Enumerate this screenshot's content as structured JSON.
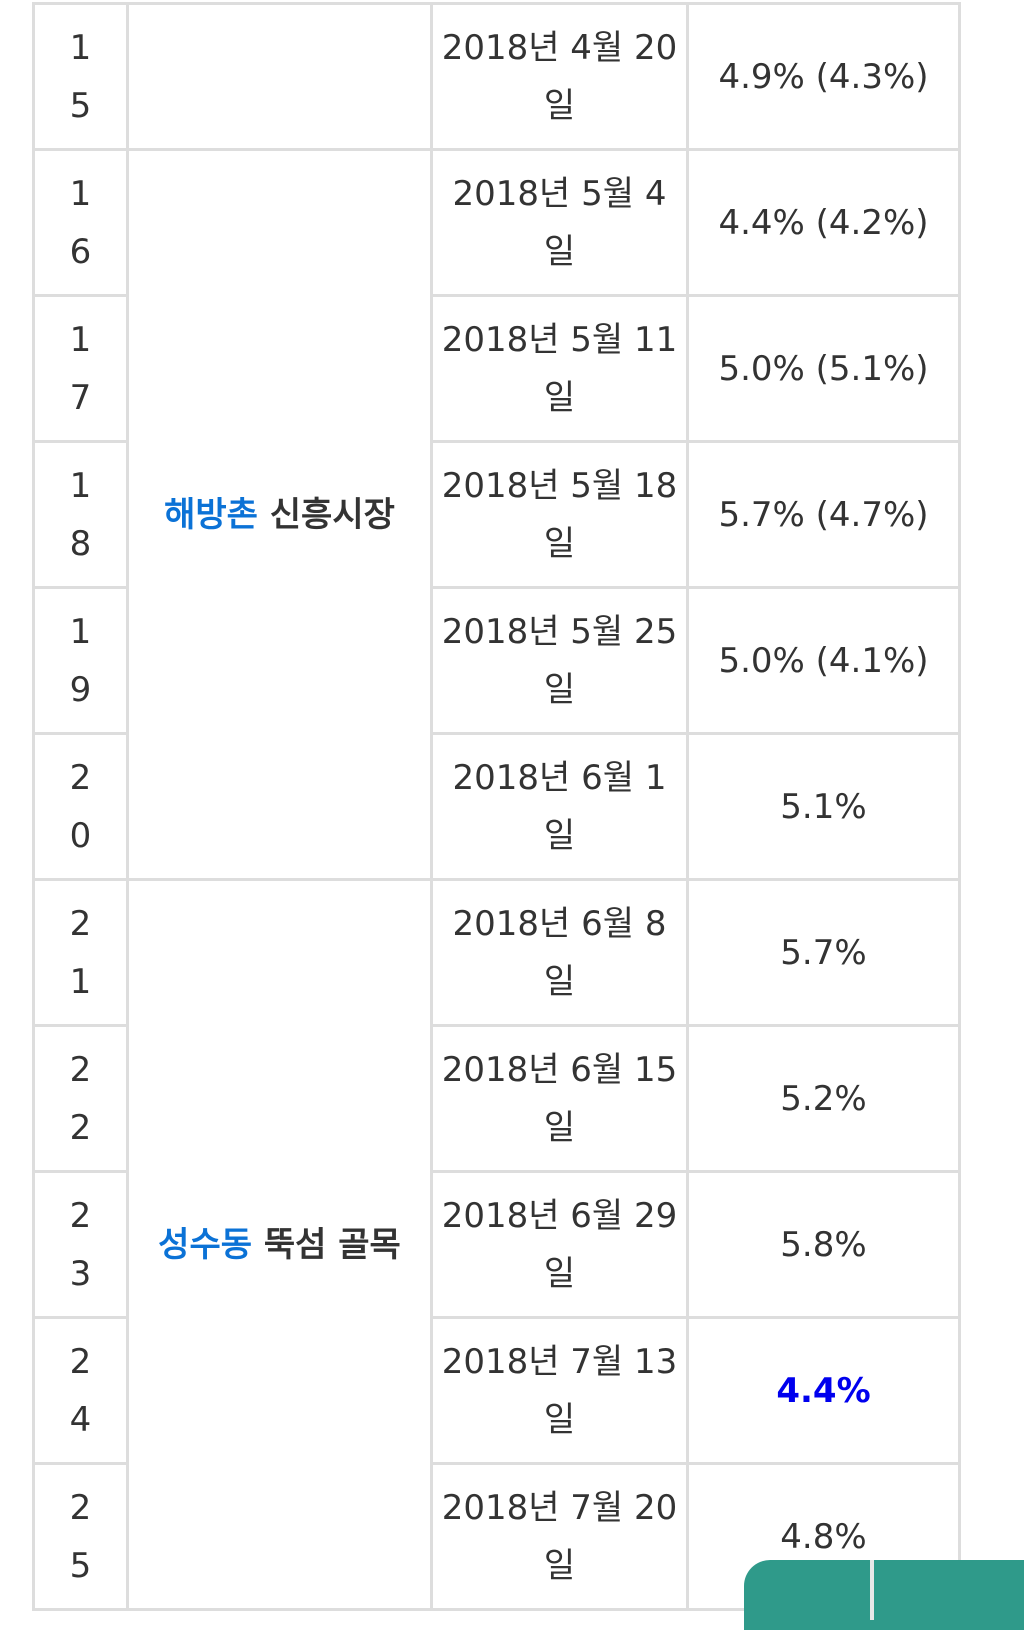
{
  "table": {
    "rows": [
      {
        "no": "15",
        "date": "2018년 4월 20일",
        "rating": "4.9% (4.3%)"
      },
      {
        "no": "16",
        "date": "2018년 5월 4일",
        "rating": "4.4% (4.2%)"
      },
      {
        "no": "17",
        "date": "2018년 5월 11일",
        "rating": "5.0% (5.1%)"
      },
      {
        "no": "18",
        "date": "2018년 5월 18일",
        "rating": "5.7% (4.7%)"
      },
      {
        "no": "19",
        "date": "2018년 5월 25일",
        "rating": "5.0% (4.1%)"
      },
      {
        "no": "20",
        "date": "2018년 6월 1일",
        "rating": "5.1%"
      },
      {
        "no": "21",
        "date": "2018년 6월 8일",
        "rating": "5.7%"
      },
      {
        "no": "22",
        "date": "2018년 6월 15일",
        "rating": "5.2%"
      },
      {
        "no": "23",
        "date": "2018년 6월 29일",
        "rating": "5.8%"
      },
      {
        "no": "24",
        "date": "2018년 7월 13일",
        "rating": "4.4%"
      },
      {
        "no": "25",
        "date": "2018년 7월 20일",
        "rating": "4.8%"
      }
    ],
    "locations": [
      {
        "link": "해방촌",
        "rest": " 신흥시장"
      },
      {
        "link": "성수동",
        "rest": " 뚝섬 골목"
      }
    ]
  },
  "colors": {
    "link": "#0b72d6",
    "highlight": "#0000ee",
    "border": "#dddddd",
    "fab": "#2f9a8a"
  }
}
